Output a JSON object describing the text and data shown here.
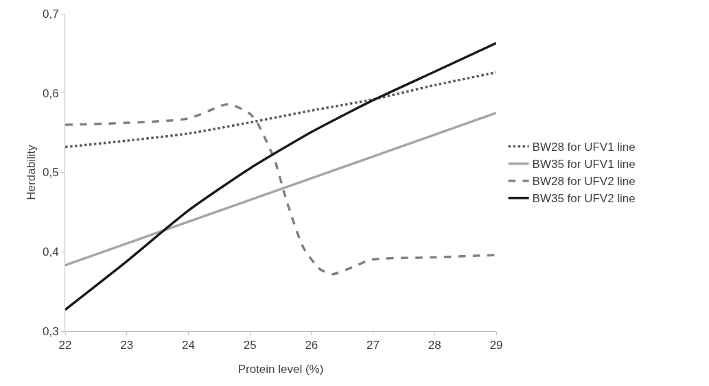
{
  "chart_data": {
    "type": "line",
    "xlabel": "Protein level (%)",
    "ylabel": "Herdability",
    "xlim": [
      22,
      29
    ],
    "xticks": [
      22,
      23,
      24,
      25,
      26,
      27,
      28,
      29
    ],
    "ylim": [
      0.3,
      0.7
    ],
    "yticks": [
      {
        "value": 0.3,
        "label": "0,3"
      },
      {
        "value": 0.4,
        "label": "0,4"
      },
      {
        "value": 0.5,
        "label": "0,5"
      },
      {
        "value": 0.6,
        "label": "0,6"
      },
      {
        "value": 0.7,
        "label": "0,7"
      }
    ],
    "grid": false,
    "legend": "right",
    "marker": "none",
    "series": [
      {
        "name": "BW28 for UFV1 line",
        "color": "#595959",
        "line_style": "dotted",
        "x": [
          22,
          23,
          24,
          25,
          26,
          27,
          28,
          29
        ],
        "values": [
          0.532,
          0.54,
          0.549,
          0.563,
          0.578,
          0.592,
          0.61,
          0.626
        ]
      },
      {
        "name": "BW35 for UFV1 line",
        "color": "#a6a6a6",
        "line_style": "solid",
        "x": [
          22,
          29
        ],
        "values": [
          0.383,
          0.575
        ]
      },
      {
        "name": "BW28 for UFV2 line",
        "color": "#808080",
        "line_style": "dashed",
        "x": [
          22,
          24,
          24.65,
          25,
          25.13,
          25.4,
          25.6,
          25.87,
          26.14,
          26.35,
          26.68,
          26.96,
          28,
          29
        ],
        "values": [
          0.56,
          0.568,
          0.586,
          0.574,
          0.561,
          0.516,
          0.463,
          0.405,
          0.378,
          0.372,
          0.381,
          0.39,
          0.393,
          0.396
        ]
      },
      {
        "name": "BW35 for UFV2 line",
        "color": "#1a1a1a",
        "line_style": "solid",
        "x": [
          22,
          23,
          24,
          25,
          26,
          27,
          28,
          29
        ],
        "values": [
          0.327,
          0.388,
          0.452,
          0.505,
          0.551,
          0.591,
          0.627,
          0.663
        ]
      }
    ]
  }
}
